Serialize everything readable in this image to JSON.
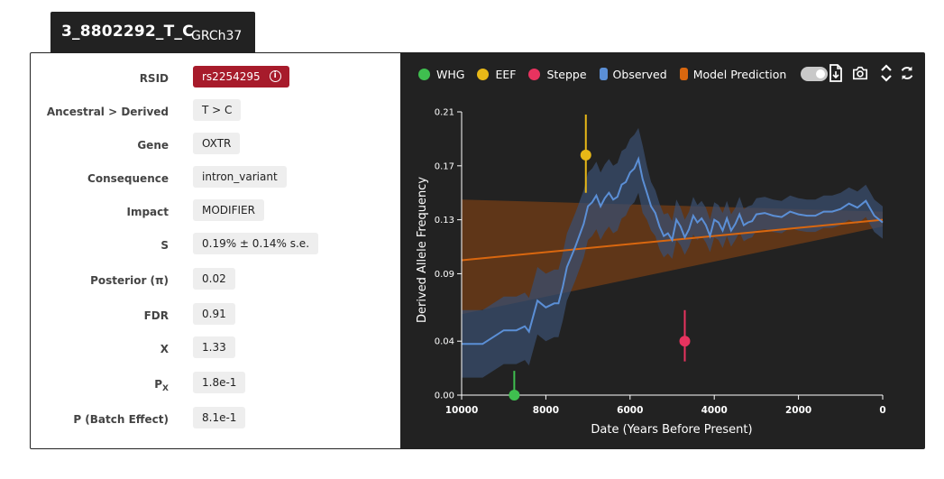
{
  "tab": {
    "variant_id": "3_8802292_T_C",
    "assembly": "GRCh37"
  },
  "info_rows": [
    {
      "label": "RSID",
      "value": "rs2254295",
      "style": "rsid"
    },
    {
      "label": "Ancestral > Derived",
      "value": "T > C"
    },
    {
      "label": "Gene",
      "value": "OXTR"
    },
    {
      "label": "Consequence",
      "value": "intron_variant"
    },
    {
      "label": "Impact",
      "value": "MODIFIER"
    },
    {
      "label": "S",
      "value": "0.19% ± 0.14% s.e."
    },
    {
      "label": "Posterior (π)",
      "value": "0.02"
    },
    {
      "label": "FDR",
      "value": "0.91"
    },
    {
      "label": "X",
      "value": "1.33"
    },
    {
      "label": "P",
      "label_sub": "X",
      "value": "1.8e-1"
    },
    {
      "label": "P (Batch Effect)",
      "value": "8.1e-1"
    }
  ],
  "toolbar": {
    "icons": [
      "download-file-icon",
      "camera-icon",
      "expand-vertical-icon",
      "refresh-icon"
    ],
    "toggle_on": true
  },
  "colors": {
    "whg": "#3fbf4f",
    "eef": "#e8b817",
    "steppe": "#e8335f",
    "observed": "#5b8fd6",
    "observed_band": "#3a4d6e",
    "model": "#d9670f",
    "model_band": "#6a3a16",
    "background": "#222222",
    "rsid_badge": "#a71b2b"
  },
  "chart_data": {
    "type": "line",
    "title": "",
    "xlabel": "Date (Years Before Present)",
    "ylabel": "Derived Allele Frequency",
    "xlim": [
      10000,
      0
    ],
    "ylim": [
      0,
      0.21
    ],
    "xticks": [
      10000,
      8000,
      6000,
      4000,
      2000,
      0
    ],
    "xtick_labels": [
      "10000",
      "8000",
      "6000",
      "4000",
      "2000",
      "0"
    ],
    "yticks": [
      0,
      0.04,
      0.09,
      0.13,
      0.17,
      0.21
    ],
    "ytick_labels": [
      "0.00",
      "0.04",
      "0.09",
      "0.13",
      "0.17",
      "0.21"
    ],
    "legend": [
      {
        "name": "WHG",
        "marker": "dot",
        "color_key": "whg"
      },
      {
        "name": "EEF",
        "marker": "dot",
        "color_key": "eef"
      },
      {
        "name": "Steppe",
        "marker": "dot",
        "color_key": "steppe"
      },
      {
        "name": "Observed",
        "marker": "band",
        "color_key": "observed"
      },
      {
        "name": "Model Prediction",
        "marker": "band",
        "color_key": "model"
      }
    ],
    "observed": {
      "x": [
        10000,
        9500,
        9000,
        8700,
        8500,
        8400,
        8200,
        8000,
        7800,
        7700,
        7600,
        7500,
        7300,
        7100,
        7000,
        6900,
        6800,
        6700,
        6600,
        6500,
        6400,
        6300,
        6200,
        6100,
        6000,
        5900,
        5800,
        5700,
        5600,
        5500,
        5400,
        5300,
        5200,
        5100,
        5000,
        4900,
        4800,
        4700,
        4600,
        4500,
        4400,
        4300,
        4200,
        4100,
        4000,
        3900,
        3800,
        3700,
        3600,
        3500,
        3400,
        3300,
        3200,
        3100,
        3000,
        2800,
        2600,
        2400,
        2200,
        2000,
        1800,
        1600,
        1400,
        1200,
        1000,
        800,
        600,
        400,
        200,
        0
      ],
      "y": [
        0.038,
        0.038,
        0.048,
        0.048,
        0.051,
        0.047,
        0.07,
        0.065,
        0.068,
        0.068,
        0.08,
        0.095,
        0.11,
        0.127,
        0.14,
        0.143,
        0.148,
        0.14,
        0.146,
        0.15,
        0.145,
        0.147,
        0.156,
        0.158,
        0.165,
        0.168,
        0.175,
        0.16,
        0.15,
        0.14,
        0.135,
        0.125,
        0.118,
        0.12,
        0.115,
        0.13,
        0.125,
        0.117,
        0.123,
        0.133,
        0.128,
        0.131,
        0.126,
        0.118,
        0.13,
        0.128,
        0.122,
        0.131,
        0.122,
        0.127,
        0.134,
        0.126,
        0.128,
        0.129,
        0.134,
        0.135,
        0.133,
        0.132,
        0.136,
        0.134,
        0.133,
        0.133,
        0.136,
        0.136,
        0.138,
        0.142,
        0.139,
        0.144,
        0.133,
        0.128
      ],
      "lower": [
        0.013,
        0.013,
        0.023,
        0.023,
        0.026,
        0.022,
        0.045,
        0.04,
        0.043,
        0.043,
        0.055,
        0.07,
        0.085,
        0.102,
        0.115,
        0.118,
        0.123,
        0.115,
        0.121,
        0.125,
        0.12,
        0.122,
        0.131,
        0.133,
        0.14,
        0.143,
        0.15,
        0.135,
        0.13,
        0.122,
        0.118,
        0.108,
        0.102,
        0.105,
        0.101,
        0.115,
        0.111,
        0.104,
        0.11,
        0.119,
        0.115,
        0.118,
        0.113,
        0.106,
        0.117,
        0.115,
        0.109,
        0.118,
        0.11,
        0.115,
        0.121,
        0.114,
        0.116,
        0.117,
        0.122,
        0.123,
        0.121,
        0.12,
        0.124,
        0.122,
        0.121,
        0.121,
        0.124,
        0.124,
        0.126,
        0.13,
        0.127,
        0.132,
        0.121,
        0.116
      ],
      "upper": [
        0.063,
        0.063,
        0.073,
        0.073,
        0.076,
        0.072,
        0.095,
        0.09,
        0.093,
        0.093,
        0.105,
        0.12,
        0.135,
        0.152,
        0.165,
        0.168,
        0.173,
        0.165,
        0.171,
        0.175,
        0.17,
        0.172,
        0.181,
        0.183,
        0.19,
        0.193,
        0.198,
        0.185,
        0.17,
        0.158,
        0.152,
        0.142,
        0.134,
        0.135,
        0.129,
        0.145,
        0.139,
        0.13,
        0.136,
        0.147,
        0.141,
        0.144,
        0.139,
        0.13,
        0.143,
        0.141,
        0.135,
        0.144,
        0.134,
        0.139,
        0.147,
        0.138,
        0.14,
        0.141,
        0.146,
        0.147,
        0.145,
        0.144,
        0.148,
        0.146,
        0.145,
        0.145,
        0.148,
        0.148,
        0.15,
        0.154,
        0.151,
        0.156,
        0.145,
        0.14
      ]
    },
    "model": {
      "x": [
        10000,
        0
      ],
      "y": [
        0.1,
        0.13
      ],
      "lower": [
        0.06,
        0.125
      ],
      "upper": [
        0.145,
        0.136
      ]
    },
    "ancestral_points": [
      {
        "name": "WHG",
        "x": 8750,
        "y": 0.0,
        "lower": 0.0,
        "upper": 0.018,
        "color_key": "whg"
      },
      {
        "name": "EEF",
        "x": 7050,
        "y": 0.178,
        "lower": 0.15,
        "upper": 0.208,
        "color_key": "eef"
      },
      {
        "name": "Steppe",
        "x": 4700,
        "y": 0.04,
        "lower": 0.025,
        "upper": 0.063,
        "color_key": "steppe"
      }
    ]
  }
}
